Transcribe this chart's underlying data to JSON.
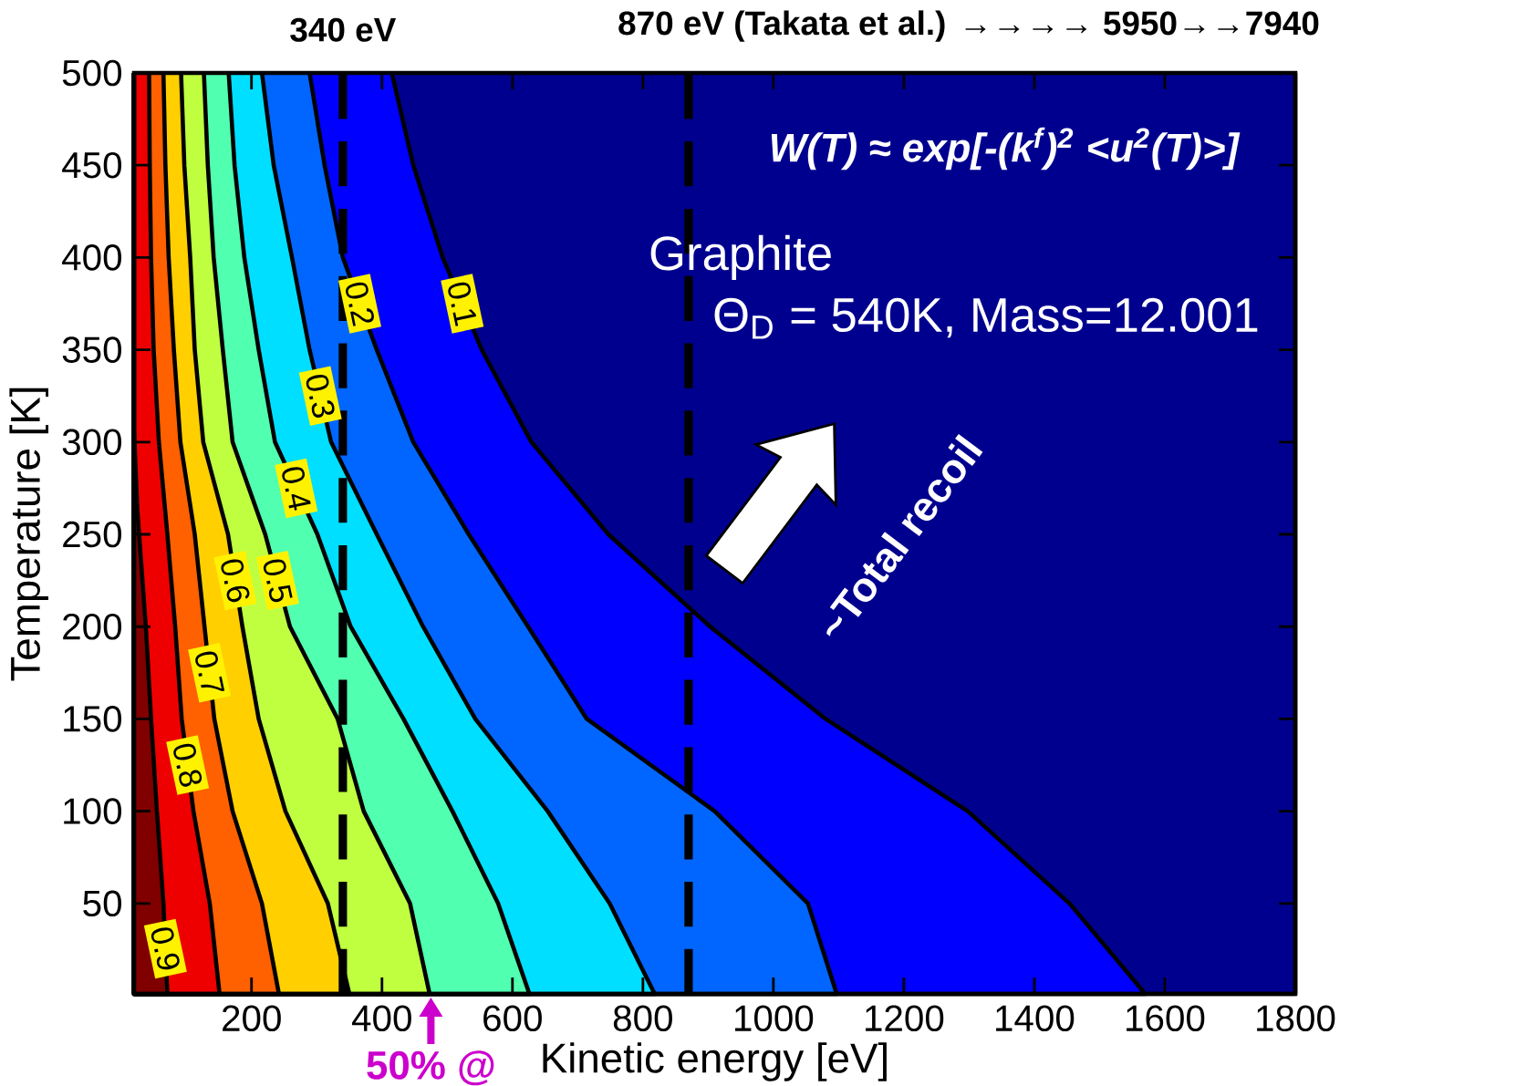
{
  "chart_data": {
    "type": "area",
    "xlabel": "Kinetic energy [eV]",
    "ylabel": "Temperature [K]",
    "xlim": [
      20,
      1800
    ],
    "ylim": [
      1,
      500
    ],
    "xticks": [
      200,
      400,
      600,
      800,
      1000,
      1200,
      1400,
      1600,
      1800
    ],
    "yticks": [
      50,
      100,
      150,
      200,
      250,
      300,
      350,
      400,
      450,
      500
    ],
    "series": [
      {
        "color": "#00008f",
        "x": [
          1800,
          1800,
          20,
          20
        ],
        "values": [
          500,
          1,
          1,
          500
        ]
      },
      {
        "name": "0.1",
        "color": "#0000ff",
        "x": [
          415,
          448,
          493,
          553,
          629,
          747,
          903,
          1080,
          1298,
          1454,
          1570,
          20,
          20
        ],
        "values": [
          500,
          450,
          400,
          350,
          300,
          250,
          200,
          150,
          100,
          50,
          1,
          1,
          500
        ]
      },
      {
        "name": "0.2",
        "color": "#0066ff",
        "x": [
          289,
          312,
          340,
          392,
          448,
          533,
          624,
          714,
          910,
          1053,
          1097,
          20,
          20
        ],
        "values": [
          500,
          450,
          400,
          350,
          300,
          250,
          200,
          150,
          100,
          50,
          1,
          1,
          500
        ]
      },
      {
        "name": "0.3",
        "color": "#00dfff",
        "x": [
          216,
          234,
          262,
          289,
          322,
          392,
          463,
          543,
          654,
          749,
          818,
          20,
          20
        ],
        "values": [
          500,
          450,
          400,
          350,
          300,
          250,
          200,
          150,
          100,
          50,
          1,
          1,
          500
        ]
      },
      {
        "name": "0.4",
        "color": "#50ffaf",
        "x": [
          165,
          174,
          189,
          211,
          236,
          301,
          352,
          433,
          508,
          578,
          626,
          20,
          20
        ],
        "values": [
          500,
          450,
          400,
          350,
          300,
          250,
          200,
          150,
          100,
          50,
          1,
          1,
          500
        ]
      },
      {
        "name": "0.5",
        "color": "#bfff40",
        "x": [
          127,
          133,
          142,
          156,
          171,
          221,
          259,
          332,
          372,
          443,
          473,
          20,
          20
        ],
        "values": [
          500,
          450,
          400,
          350,
          300,
          250,
          200,
          150,
          100,
          50,
          1,
          1,
          500
        ]
      },
      {
        "name": "0.6",
        "color": "#ffcf00",
        "x": [
          92,
          97,
          106,
          113,
          126,
          164,
          186,
          211,
          252,
          317,
          350,
          20,
          20
        ],
        "values": [
          500,
          450,
          400,
          350,
          300,
          250,
          200,
          150,
          100,
          50,
          1,
          1,
          500
        ]
      },
      {
        "name": "0.7",
        "color": "#ff6000",
        "x": [
          65,
          68,
          73,
          81,
          91,
          113,
          128,
          143,
          171,
          216,
          242,
          20,
          20
        ],
        "values": [
          500,
          450,
          400,
          350,
          300,
          250,
          200,
          150,
          100,
          50,
          1,
          1,
          500
        ]
      },
      {
        "name": "0.8",
        "color": "#ee0000",
        "x": [
          43,
          44,
          46,
          50,
          58,
          71,
          83,
          93,
          111,
          136,
          151,
          20,
          20
        ],
        "values": [
          500,
          450,
          400,
          350,
          300,
          250,
          200,
          150,
          100,
          50,
          1,
          1,
          500
        ]
      },
      {
        "name": "0.9",
        "color": "#800000",
        "x": [
          20,
          25,
          38,
          46,
          55,
          65,
          71,
          20
        ],
        "values": [
          305,
          263,
          200,
          150,
          100,
          50,
          1,
          1
        ]
      }
    ],
    "ref_lines": [
      {
        "axis": "x",
        "value": 340,
        "label": "340 eV",
        "color": "#000000",
        "line_style": "dashed"
      },
      {
        "axis": "x",
        "value": 870,
        "label": "870 eV (Takata et al.) →→→→ 5950→→7940",
        "color": "#000000",
        "line_style": "dashed"
      }
    ],
    "annotations": [
      "*W(T) ≈ exp[-(k$^{f}$)$^{2}$ <u$^{2}$(T)>]*",
      "Graphite",
      "Θ$_{D}$ =  540K, Mass=12.001",
      "~Total recoil",
      "50% @"
    ]
  }
}
